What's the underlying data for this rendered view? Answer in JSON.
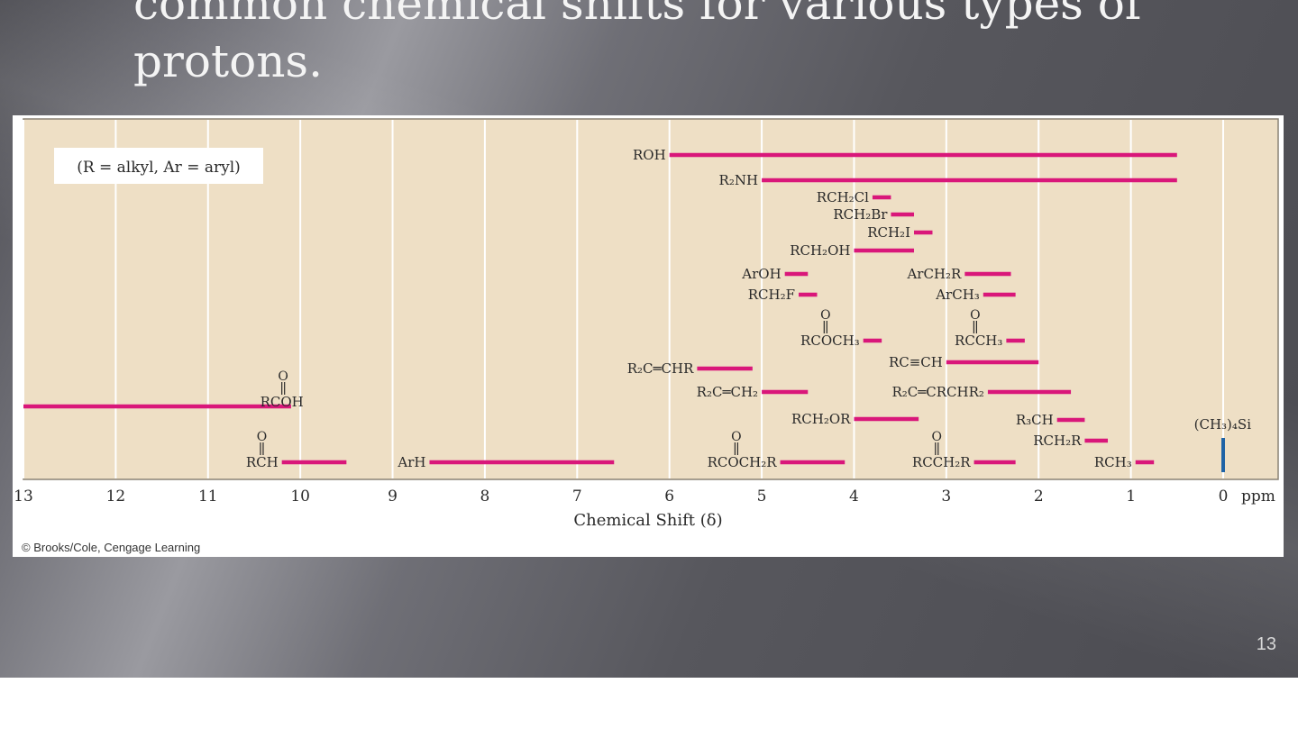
{
  "slide": {
    "title": "common chemical shifts for various types of\nprotons.",
    "page_number": "13"
  },
  "chart_data": {
    "type": "range_bar",
    "xlabel": "Chemical Shift (δ)",
    "x_unit": "ppm",
    "xlim": [
      13,
      0
    ],
    "x_reversed": true,
    "x_ticks": [
      "13",
      "12",
      "11",
      "10",
      "9",
      "8",
      "7",
      "6",
      "5",
      "4",
      "3",
      "2",
      "1",
      "0"
    ],
    "grid": true,
    "note": "(R = alkyl, Ar = aryl)",
    "credit": "© Brooks/Cole, Cengage Learning",
    "colors": {
      "bar": "#d9177a",
      "reference": "#1f63a6",
      "plot_bg": "#eedfc5",
      "grid": "#ffffff",
      "text": "#2a2a2a"
    },
    "ranges": [
      {
        "label": "ROH",
        "from": 6.0,
        "to": 0.5
      },
      {
        "label": "R₂NH",
        "from": 5.0,
        "to": 0.5
      },
      {
        "label": "RCH₂Cl",
        "from": 3.8,
        "to": 3.6
      },
      {
        "label": "RCH₂Br",
        "from": 3.6,
        "to": 3.35
      },
      {
        "label": "RCH₂I",
        "from": 3.35,
        "to": 3.15
      },
      {
        "label": "RCH₂OH",
        "from": 4.0,
        "to": 3.35
      },
      {
        "label": "ArOH",
        "from": 4.75,
        "to": 4.5
      },
      {
        "label": "ArCH₂R",
        "from": 2.8,
        "to": 2.3
      },
      {
        "label": "RCH₂F",
        "from": 4.6,
        "to": 4.4
      },
      {
        "label": "ArCH₃",
        "from": 2.6,
        "to": 2.25
      },
      {
        "label": "RCOCH₃",
        "from": 3.9,
        "to": 3.7
      },
      {
        "label": "RCCH₃",
        "from": 2.35,
        "to": 2.15
      },
      {
        "label": "RC≡CH",
        "from": 3.0,
        "to": 2.0
      },
      {
        "label": "R₂C═CHR",
        "from": 5.7,
        "to": 5.1
      },
      {
        "label": "RCOH",
        "from": 13.0,
        "to": 10.1
      },
      {
        "label": "R₂C═CH₂",
        "from": 5.0,
        "to": 4.5
      },
      {
        "label": "R₂C═CRCHR₂",
        "from": 2.55,
        "to": 1.65
      },
      {
        "label": "RCH₂OR",
        "from": 4.0,
        "to": 3.3
      },
      {
        "label": "R₃CH",
        "from": 1.8,
        "to": 1.5
      },
      {
        "label": "RCH₂R",
        "from": 1.5,
        "to": 1.25
      },
      {
        "label": "RCH",
        "from": 10.2,
        "to": 9.5
      },
      {
        "label": "ArH",
        "from": 8.6,
        "to": 6.6
      },
      {
        "label": "RCOCH₂R",
        "from": 4.8,
        "to": 4.1
      },
      {
        "label": "RCCH₂R",
        "from": 2.7,
        "to": 2.25
      },
      {
        "label": "RCH₃",
        "from": 0.95,
        "to": 0.75
      }
    ],
    "reference": {
      "label": "(CH₃)₄Si",
      "at": 0.0
    }
  }
}
